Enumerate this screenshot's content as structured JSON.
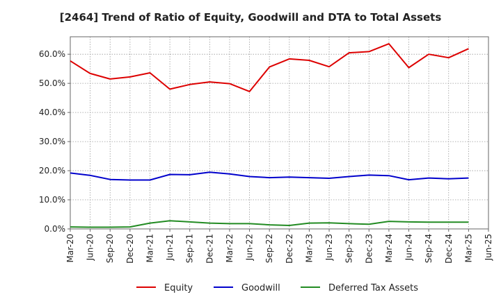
{
  "chart_data": {
    "type": "line",
    "title": "[2464]  Trend of Ratio of Equity, Goodwill and DTA to Total Assets",
    "xlabel": "",
    "ylabel": "",
    "ylim": [
      0,
      66
    ],
    "yticks": [
      "0.0%",
      "10.0%",
      "20.0%",
      "30.0%",
      "40.0%",
      "50.0%",
      "60.0%"
    ],
    "ytick_values": [
      0,
      10,
      20,
      30,
      40,
      50,
      60
    ],
    "xticks": [
      "Mar-20",
      "Jun-20",
      "Sep-20",
      "Dec-20",
      "Mar-21",
      "Jun-21",
      "Sep-21",
      "Dec-21",
      "Mar-22",
      "Jun-22",
      "Sep-22",
      "Dec-22",
      "Mar-23",
      "Jun-23",
      "Sep-23",
      "Dec-23",
      "Mar-24",
      "Jun-24",
      "Sep-24",
      "Dec-24",
      "Mar-25",
      "Jun-25"
    ],
    "grid": true,
    "legend_position": "bottom",
    "x": [
      "Mar-20",
      "Jun-20",
      "Sep-20",
      "Dec-20",
      "Mar-21",
      "Jun-21",
      "Sep-21",
      "Dec-21",
      "Mar-22",
      "Jun-22",
      "Sep-22",
      "Dec-22",
      "Mar-23",
      "Jun-23",
      "Sep-23",
      "Dec-23",
      "Mar-24",
      "Jun-24",
      "Sep-24",
      "Dec-24",
      "Mar-25"
    ],
    "series": [
      {
        "name": "Equity",
        "color": "#dd0000",
        "values": [
          57.7,
          53.4,
          51.5,
          52.2,
          53.6,
          48.0,
          49.6,
          50.5,
          49.9,
          47.2,
          55.6,
          58.4,
          57.9,
          55.7,
          60.5,
          60.9,
          63.6,
          55.4,
          60.0,
          58.8,
          61.9
        ]
      },
      {
        "name": "Goodwill",
        "color": "#0000cc",
        "values": [
          19.2,
          18.4,
          17.0,
          16.8,
          16.8,
          18.7,
          18.6,
          19.5,
          18.9,
          18.0,
          17.6,
          17.8,
          17.6,
          17.4,
          18.0,
          18.5,
          18.3,
          16.9,
          17.5,
          17.2,
          17.5
        ]
      },
      {
        "name": "Deferred Tax Assets",
        "color": "#228b22",
        "values": [
          0.7,
          0.6,
          0.6,
          0.7,
          2.0,
          2.8,
          2.4,
          2.0,
          1.8,
          1.8,
          1.4,
          1.2,
          2.0,
          2.1,
          1.8,
          1.6,
          2.6,
          2.4,
          2.3,
          2.3,
          2.3
        ]
      }
    ]
  }
}
